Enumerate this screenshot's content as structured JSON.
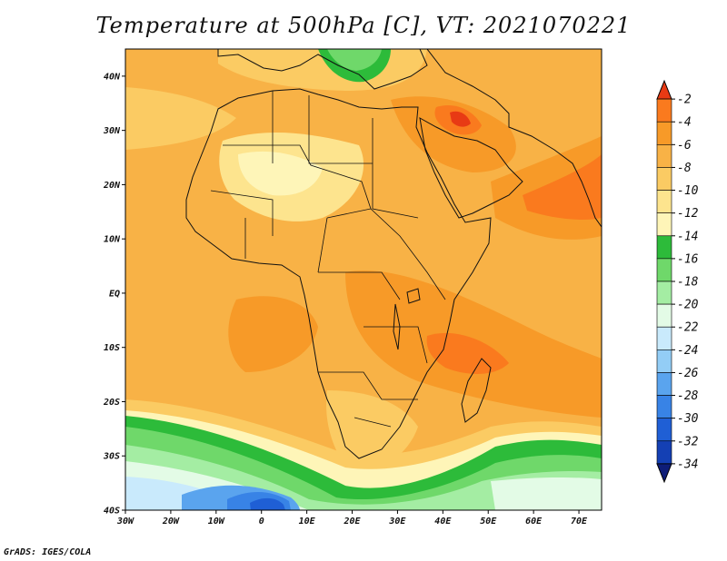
{
  "title": "Temperature at 500hPa [C], VT: 2021070221",
  "credit": "GrADS: IGES/COLA",
  "map": {
    "lon_range": [
      -30,
      75
    ],
    "lat_range": [
      -40,
      45
    ],
    "lat_ticks": [
      {
        "value": 40,
        "label": "40N"
      },
      {
        "value": 30,
        "label": "30N"
      },
      {
        "value": 20,
        "label": "20N"
      },
      {
        "value": 10,
        "label": "10N"
      },
      {
        "value": 0,
        "label": "EQ"
      },
      {
        "value": -10,
        "label": "10S"
      },
      {
        "value": -20,
        "label": "20S"
      },
      {
        "value": -30,
        "label": "30S"
      },
      {
        "value": -40,
        "label": "40S"
      }
    ],
    "lon_ticks": [
      {
        "value": -30,
        "label": "30W"
      },
      {
        "value": -20,
        "label": "20W"
      },
      {
        "value": -10,
        "label": "10W"
      },
      {
        "value": 0,
        "label": "0"
      },
      {
        "value": 10,
        "label": "10E"
      },
      {
        "value": 20,
        "label": "20E"
      },
      {
        "value": 30,
        "label": "30E"
      },
      {
        "value": 40,
        "label": "40E"
      },
      {
        "value": 50,
        "label": "50E"
      },
      {
        "value": 60,
        "label": "60E"
      },
      {
        "value": 70,
        "label": "70E"
      }
    ]
  },
  "colorbar": {
    "labels": [
      "-2",
      "-4",
      "-6",
      "-8",
      "-10",
      "-12",
      "-14",
      "-16",
      "-18",
      "-20",
      "-22",
      "-24",
      "-26",
      "-28",
      "-30",
      "-32",
      "-34"
    ],
    "colors": [
      "#e83a14",
      "#fa7a1e",
      "#f79a28",
      "#f8b246",
      "#fbcb63",
      "#fde48e",
      "#fef5b8",
      "#2dbb3a",
      "#6fd86a",
      "#a4eda3",
      "#e3fbe6",
      "#c9eafc",
      "#93cdf6",
      "#5aa4ee",
      "#3883e6",
      "#1f5fd5",
      "#1440b4",
      "#0e1d78"
    ]
  }
}
